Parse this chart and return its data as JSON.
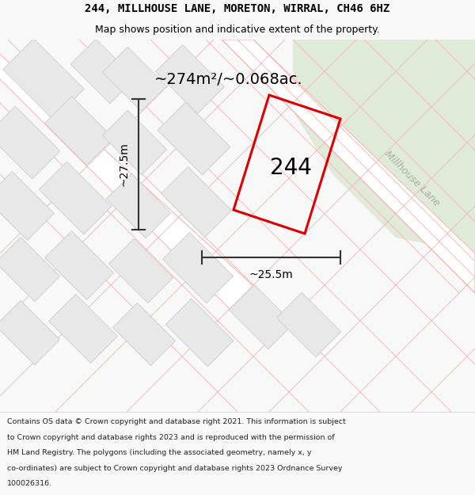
{
  "title_line1": "244, MILLHOUSE LANE, MORETON, WIRRAL, CH46 6HZ",
  "title_line2": "Map shows position and indicative extent of the property.",
  "area_label": "~274m²/~0.068ac.",
  "plot_number": "244",
  "dim_height": "~27.5m",
  "dim_width": "~25.5m",
  "street_label": "Millhouse Lane",
  "footer_text": "Contains OS data © Crown copyright and database right 2021. This information is subject to Crown copyright and database rights 2023 and is reproduced with the permission of HM Land Registry. The polygons (including the associated geometry, namely x, y co-ordinates) are subject to Crown copyright and database rights 2023 Ordnance Survey 100026316.",
  "bg_color": "#f0f0f0",
  "green_color": "#e0ead8",
  "road_fill": "#ffffff",
  "plot_outline_color": "#cccccc",
  "plot_fill_color": "#e8e8e8",
  "road_line_color": "#f5b8b8",
  "plot_color": "#dd0000",
  "dim_line_color": "#333333",
  "title_bg": "#f8f8f8",
  "footer_bg": "#f8f8f8",
  "title_fontsize": 10,
  "subtitle_fontsize": 9,
  "area_fontsize": 14,
  "plot_num_fontsize": 20,
  "dim_fontsize": 10,
  "street_fontsize": 9,
  "footer_fontsize": 6.8
}
